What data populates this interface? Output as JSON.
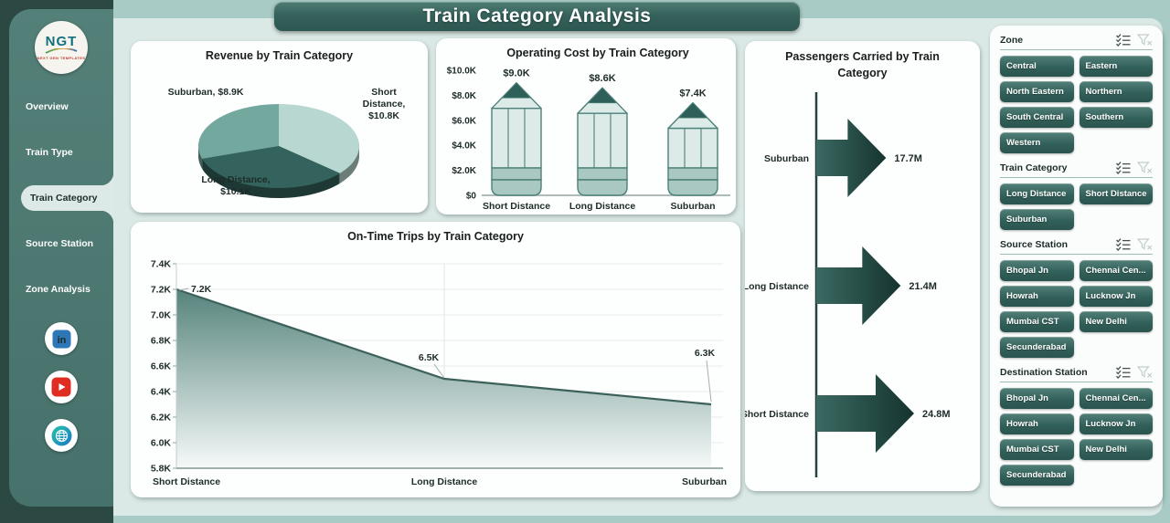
{
  "page": {
    "title": "Train Category Analysis"
  },
  "colors": {
    "frame": "#2b4843",
    "sidebar": "#4e7b74",
    "main_bg": "#dbe9e6",
    "strip": "#a8cbc6",
    "accent_dark": "#2e5a54",
    "pie_short": "#b9d7d1",
    "pie_long": "#34625c",
    "pie_suburban": "#73a89e",
    "pencil_tip": "#2e6059",
    "pencil_body": "#dcebe7",
    "pencil_band": "#a9c8c2",
    "arrow": "#24453f"
  },
  "sidebar": {
    "logo": {
      "text": "NGT",
      "subtext": "NEXT GEN TEMPLATES"
    },
    "items": [
      {
        "label": "Overview",
        "active": false
      },
      {
        "label": "Train Type",
        "active": false
      },
      {
        "label": "Train Category",
        "active": true
      },
      {
        "label": "Source Station",
        "active": false
      },
      {
        "label": "Zone Analysis",
        "active": false
      }
    ],
    "social": [
      "linkedin-icon",
      "youtube-icon",
      "website-globe-icon"
    ]
  },
  "chart_data": [
    {
      "type": "pie",
      "style": "3d",
      "title": "Revenue by Train Category",
      "slices": [
        {
          "label": "Short Distance",
          "value": 10.8,
          "value_label": "$10.8K",
          "color": "#b9d7d1"
        },
        {
          "label": "Long Distance",
          "value": 10.1,
          "value_label": "$10.1K",
          "color": "#34625c"
        },
        {
          "label": "Suburban",
          "value": 8.9,
          "value_label": "$8.9K",
          "color": "#73a89e"
        }
      ],
      "unit": "$K",
      "legend_position": "data-labels"
    },
    {
      "type": "bar",
      "style": "pencil",
      "title": "Operating Cost by Train Category",
      "categories": [
        "Short Distance",
        "Long Distance",
        "Suburban"
      ],
      "values": [
        9000,
        8600,
        7400
      ],
      "value_labels": [
        "$9.0K",
        "$8.6K",
        "$7.4K"
      ],
      "ylim": [
        0,
        10000
      ],
      "y_tick_labels": [
        "$0",
        "$2.0K",
        "$4.0K",
        "$6.0K",
        "$8.0K",
        "$10.0K"
      ],
      "grid": false
    },
    {
      "type": "bar",
      "style": "arrow",
      "orientation": "horizontal",
      "title": "Passengers Carried by Train Category",
      "categories": [
        "Suburban",
        "Long Distance",
        "Short Distance"
      ],
      "values": [
        17.7,
        21.4,
        24.8
      ],
      "value_labels": [
        "17.7M",
        "21.4M",
        "24.8M"
      ],
      "unit": "M",
      "grid": false
    },
    {
      "type": "area",
      "title": "On-Time Trips by Train Category",
      "categories": [
        "Short Distance",
        "Long Distance",
        "Suburban"
      ],
      "values": [
        7200,
        6500,
        6300
      ],
      "value_labels": [
        "7.2K",
        "6.5K",
        "6.3K"
      ],
      "ylim": [
        5800,
        7400
      ],
      "y_tick_labels": [
        "5.8K",
        "6.0K",
        "6.2K",
        "6.4K",
        "6.6K",
        "6.8K",
        "7.0K",
        "7.2K",
        "7.4K"
      ],
      "grid": true
    }
  ],
  "filters": {
    "header_icons": [
      "multi-select-icon",
      "clear-filter-icon"
    ],
    "sections": [
      {
        "title": "Zone",
        "options": [
          "Central",
          "Eastern",
          "North Eastern",
          "Northern",
          "South Central",
          "Southern",
          "Western"
        ]
      },
      {
        "title": "Train Category",
        "options": [
          "Long Distance",
          "Short Distance",
          "Suburban"
        ]
      },
      {
        "title": "Source Station",
        "options": [
          "Bhopal Jn",
          "Chennai Cen...",
          "Howrah",
          "Lucknow Jn",
          "Mumbai CST",
          "New Delhi",
          "Secunderabad"
        ]
      },
      {
        "title": "Destination Station",
        "options": [
          "Bhopal Jn",
          "Chennai Cen...",
          "Howrah",
          "Lucknow Jn",
          "Mumbai CST",
          "New Delhi",
          "Secunderabad"
        ]
      }
    ]
  }
}
